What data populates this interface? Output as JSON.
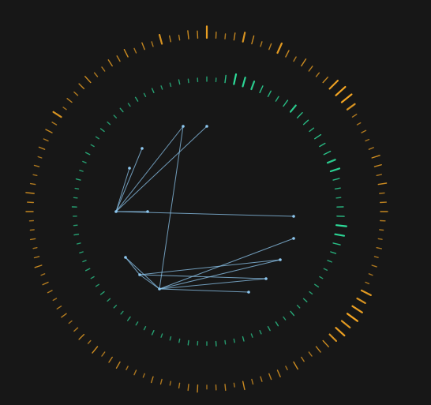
{
  "chart_data": {
    "type": "radial-network",
    "title": "",
    "colors": {
      "background": "#171717",
      "outer_ring": "#f5a623",
      "middle_ring": "#2ee6a0",
      "network": "#8ec8f0"
    },
    "outer_ring": {
      "count": 120,
      "values": [
        0.9,
        0.4,
        0.3,
        0.5,
        0.7,
        0.6,
        0.3,
        0.4,
        0.8,
        0.5,
        0.3,
        0.6,
        0.4,
        0.3,
        0.5,
        0.9,
        1.0,
        1.0,
        0.7,
        0.3,
        0.2,
        0.3,
        0.2,
        0.3,
        0.6,
        0.5,
        0.3,
        0.6,
        0.3,
        0.4,
        0.5,
        0.3,
        0.2,
        0.2,
        0.3,
        0.2,
        0.3,
        0.2,
        0.2,
        0.8,
        0.7,
        0.9,
        1.0,
        0.8,
        0.9,
        0.7,
        0.6,
        0.5,
        0.3,
        0.3,
        0.6,
        0.2,
        0.5,
        0.4,
        0.3,
        0.3,
        0.6,
        0.2,
        0.4,
        0.3,
        0.2,
        0.5,
        0.4,
        0.3,
        0.2,
        0.3,
        0.4,
        0.2,
        0.3,
        0.2,
        0.5,
        0.4,
        0.3,
        0.6,
        0.2,
        0.5,
        0.3,
        0.2,
        0.4,
        0.3,
        0.2,
        0.3,
        0.4,
        0.2,
        0.5,
        0.3,
        0.2,
        0.3,
        0.2,
        0.2,
        0.5,
        0.4,
        0.6,
        0.3,
        0.2,
        0.3,
        0.2,
        0.4,
        0.3,
        0.5,
        0.3,
        0.7,
        0.2,
        0.4,
        0.3,
        0.5,
        0.6,
        0.3,
        0.3,
        0.5,
        0.4,
        0.6,
        0.3,
        0.5,
        0.3,
        0.7,
        0.4,
        0.3,
        0.6,
        0.5
      ]
    },
    "middle_ring": {
      "count": 90,
      "values": [
        0.3,
        0.2,
        0.6,
        0.9,
        0.8,
        0.7,
        0.6,
        0.5,
        0.4,
        0.6,
        0.7,
        0.6,
        0.5,
        0.4,
        0.6,
        0.5,
        0.6,
        0.7,
        0.8,
        0.5,
        0.4,
        0.3,
        0.5,
        0.6,
        0.9,
        0.8,
        0.6,
        0.4,
        0.3,
        0.2,
        0.2,
        0.3,
        0.2,
        0.3,
        0.2,
        0.4,
        0.2,
        0.3,
        0.3,
        0.2,
        0.2,
        0.3,
        0.2,
        0.2,
        0.3,
        0.2,
        0.2,
        0.3,
        0.2,
        0.2,
        0.2,
        0.3,
        0.2,
        0.2,
        0.3,
        0.2,
        0.2,
        0.2,
        0.3,
        0.2,
        0.2,
        0.3,
        0.2,
        0.2,
        0.2,
        0.3,
        0.2,
        0.2,
        0.3,
        0.2,
        0.2,
        0.3,
        0.2,
        0.2,
        0.3,
        0.2,
        0.2,
        0.3,
        0.2,
        0.2,
        0.3,
        0.2,
        0.3,
        0.2,
        0.3,
        0.2,
        0.2,
        0.3,
        0.2,
        0.2
      ]
    },
    "network": {
      "nodes": [
        {
          "id": "a",
          "x": -115,
          "y": 0
        },
        {
          "id": "b",
          "x": -60,
          "y": 98
        },
        {
          "id": "c",
          "x": -85,
          "y": 80
        },
        {
          "id": "d",
          "x": -30,
          "y": -108
        },
        {
          "id": "e",
          "x": 0,
          "y": -108
        },
        {
          "id": "f",
          "x": -82,
          "y": -80
        },
        {
          "id": "g",
          "x": 110,
          "y": 6
        },
        {
          "id": "h",
          "x": 93,
          "y": 61
        },
        {
          "id": "i",
          "x": 75,
          "y": 85
        },
        {
          "id": "j",
          "x": 53,
          "y": 102
        },
        {
          "id": "k",
          "x": -103,
          "y": 58
        },
        {
          "id": "l",
          "x": -98,
          "y": -55
        },
        {
          "id": "m",
          "x": -75,
          "y": 0
        },
        {
          "id": "n",
          "x": 110,
          "y": 34
        }
      ],
      "edges": [
        [
          "a",
          "d"
        ],
        [
          "a",
          "e"
        ],
        [
          "a",
          "f"
        ],
        [
          "a",
          "l"
        ],
        [
          "a",
          "m"
        ],
        [
          "a",
          "g"
        ],
        [
          "b",
          "d"
        ],
        [
          "b",
          "c"
        ],
        [
          "b",
          "h"
        ],
        [
          "b",
          "i"
        ],
        [
          "b",
          "j"
        ],
        [
          "b",
          "n"
        ],
        [
          "b",
          "k"
        ],
        [
          "c",
          "h"
        ],
        [
          "c",
          "i"
        ],
        [
          "c",
          "k"
        ]
      ]
    }
  }
}
